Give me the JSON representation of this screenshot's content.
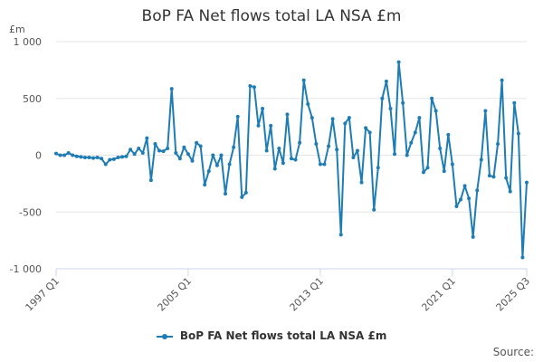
{
  "chart_data": {
    "type": "line",
    "title": "BoP FA Net flows total LA NSA £m",
    "ylabel": "£m",
    "ylim": [
      -1000,
      1000
    ],
    "yticks": [
      1000,
      500,
      0,
      -500,
      -1000
    ],
    "ytick_labels": [
      "1 000",
      "500",
      "0",
      "-500",
      "-1 000"
    ],
    "xtick_labels": [
      "1997 Q1",
      "2005 Q1",
      "2013 Q1",
      "2021 Q1",
      "2025 Q3"
    ],
    "xtick_index": [
      0,
      32,
      64,
      96,
      114
    ],
    "grid": "horizontal",
    "legend_position": "bottom",
    "series": [
      {
        "name": "BoP FA Net flows total LA NSA £m",
        "color": "#1f7db5",
        "values": [
          15,
          0,
          0,
          20,
          0,
          -10,
          -15,
          -20,
          -20,
          -25,
          -20,
          -30,
          -80,
          -40,
          -35,
          -20,
          -15,
          -10,
          50,
          10,
          60,
          20,
          150,
          -220,
          100,
          40,
          35,
          60,
          585,
          20,
          -30,
          70,
          10,
          -50,
          110,
          80,
          -260,
          -140,
          0,
          -90,
          0,
          -340,
          -80,
          70,
          340,
          -370,
          -330,
          610,
          600,
          260,
          410,
          40,
          260,
          -120,
          60,
          -70,
          360,
          -30,
          -40,
          110,
          660,
          450,
          330,
          100,
          -80,
          -80,
          80,
          320,
          50,
          -700,
          280,
          330,
          -20,
          40,
          -240,
          240,
          200,
          -480,
          -110,
          500,
          650,
          410,
          10,
          820,
          460,
          0,
          110,
          200,
          330,
          -150,
          -110,
          500,
          390,
          60,
          -140,
          180,
          -80,
          -450,
          -390,
          -270,
          -380,
          -720,
          -310,
          -40,
          390,
          -180,
          -190,
          100,
          660,
          -200,
          -320,
          460,
          190,
          -900,
          -240
        ]
      }
    ]
  },
  "source_label": "Source:"
}
